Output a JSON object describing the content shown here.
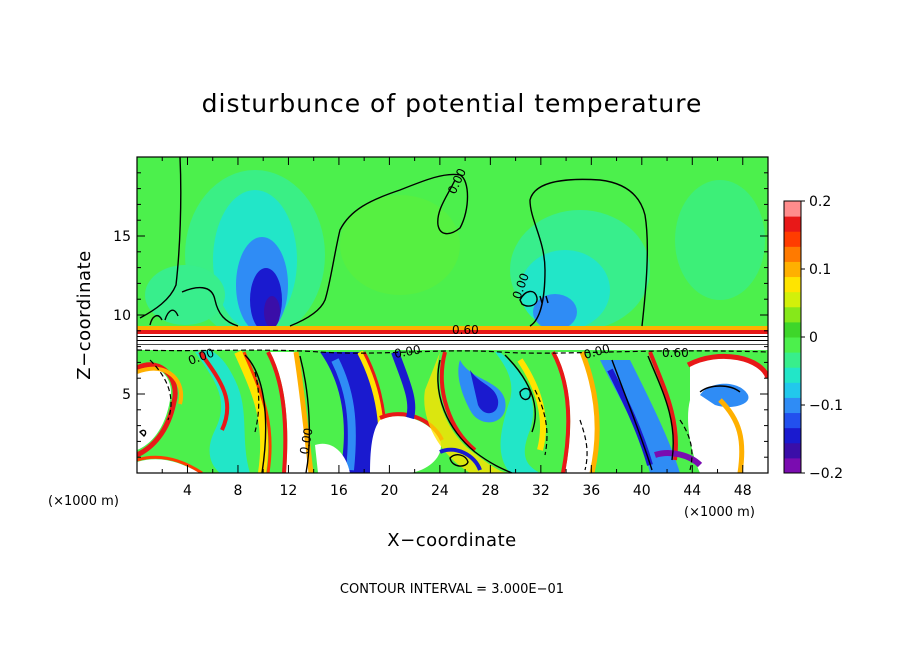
{
  "chart_data": {
    "type": "heatmap",
    "title": "disturbunce of potential temperature",
    "xlabel": "X−coordinate",
    "ylabel": "Z−coordinate",
    "x_unit_left": "(×1000 m)",
    "x_unit_right": "(×1000 m)",
    "x_ticks": [
      "4",
      "8",
      "12",
      "16",
      "20",
      "24",
      "28",
      "32",
      "36",
      "40",
      "44",
      "48"
    ],
    "y_ticks": [
      "5",
      "10",
      "15"
    ],
    "xlim": [
      0,
      50
    ],
    "ylim": [
      0,
      20
    ],
    "colorbar": {
      "min": -0.2,
      "max": 0.2,
      "tick_labels": [
        "0.2",
        "0.1",
        "0",
        "−0.1",
        "−0.2"
      ],
      "tick_values": [
        0.2,
        0.1,
        0,
        -0.1,
        -0.2
      ],
      "colors": [
        "#7a0cb0",
        "#3a0ea8",
        "#1a1acf",
        "#2250ee",
        "#2f8cf5",
        "#22c8ec",
        "#22e6c8",
        "#38ee8c",
        "#4cf04c",
        "#3ed62a",
        "#86e81a",
        "#d2f00a",
        "#ffe400",
        "#ffb000",
        "#ff7a00",
        "#ff3c00",
        "#e81818",
        "#ff8c8c"
      ]
    },
    "contour_labels": [
      "0.00",
      "0.00",
      "0.60",
      "0.00",
      "0.00",
      "0.60",
      "0.00",
      "0.00"
    ],
    "contour_interval_text": "CONTOUR INTERVAL = 3.000E−01",
    "grid": false
  }
}
